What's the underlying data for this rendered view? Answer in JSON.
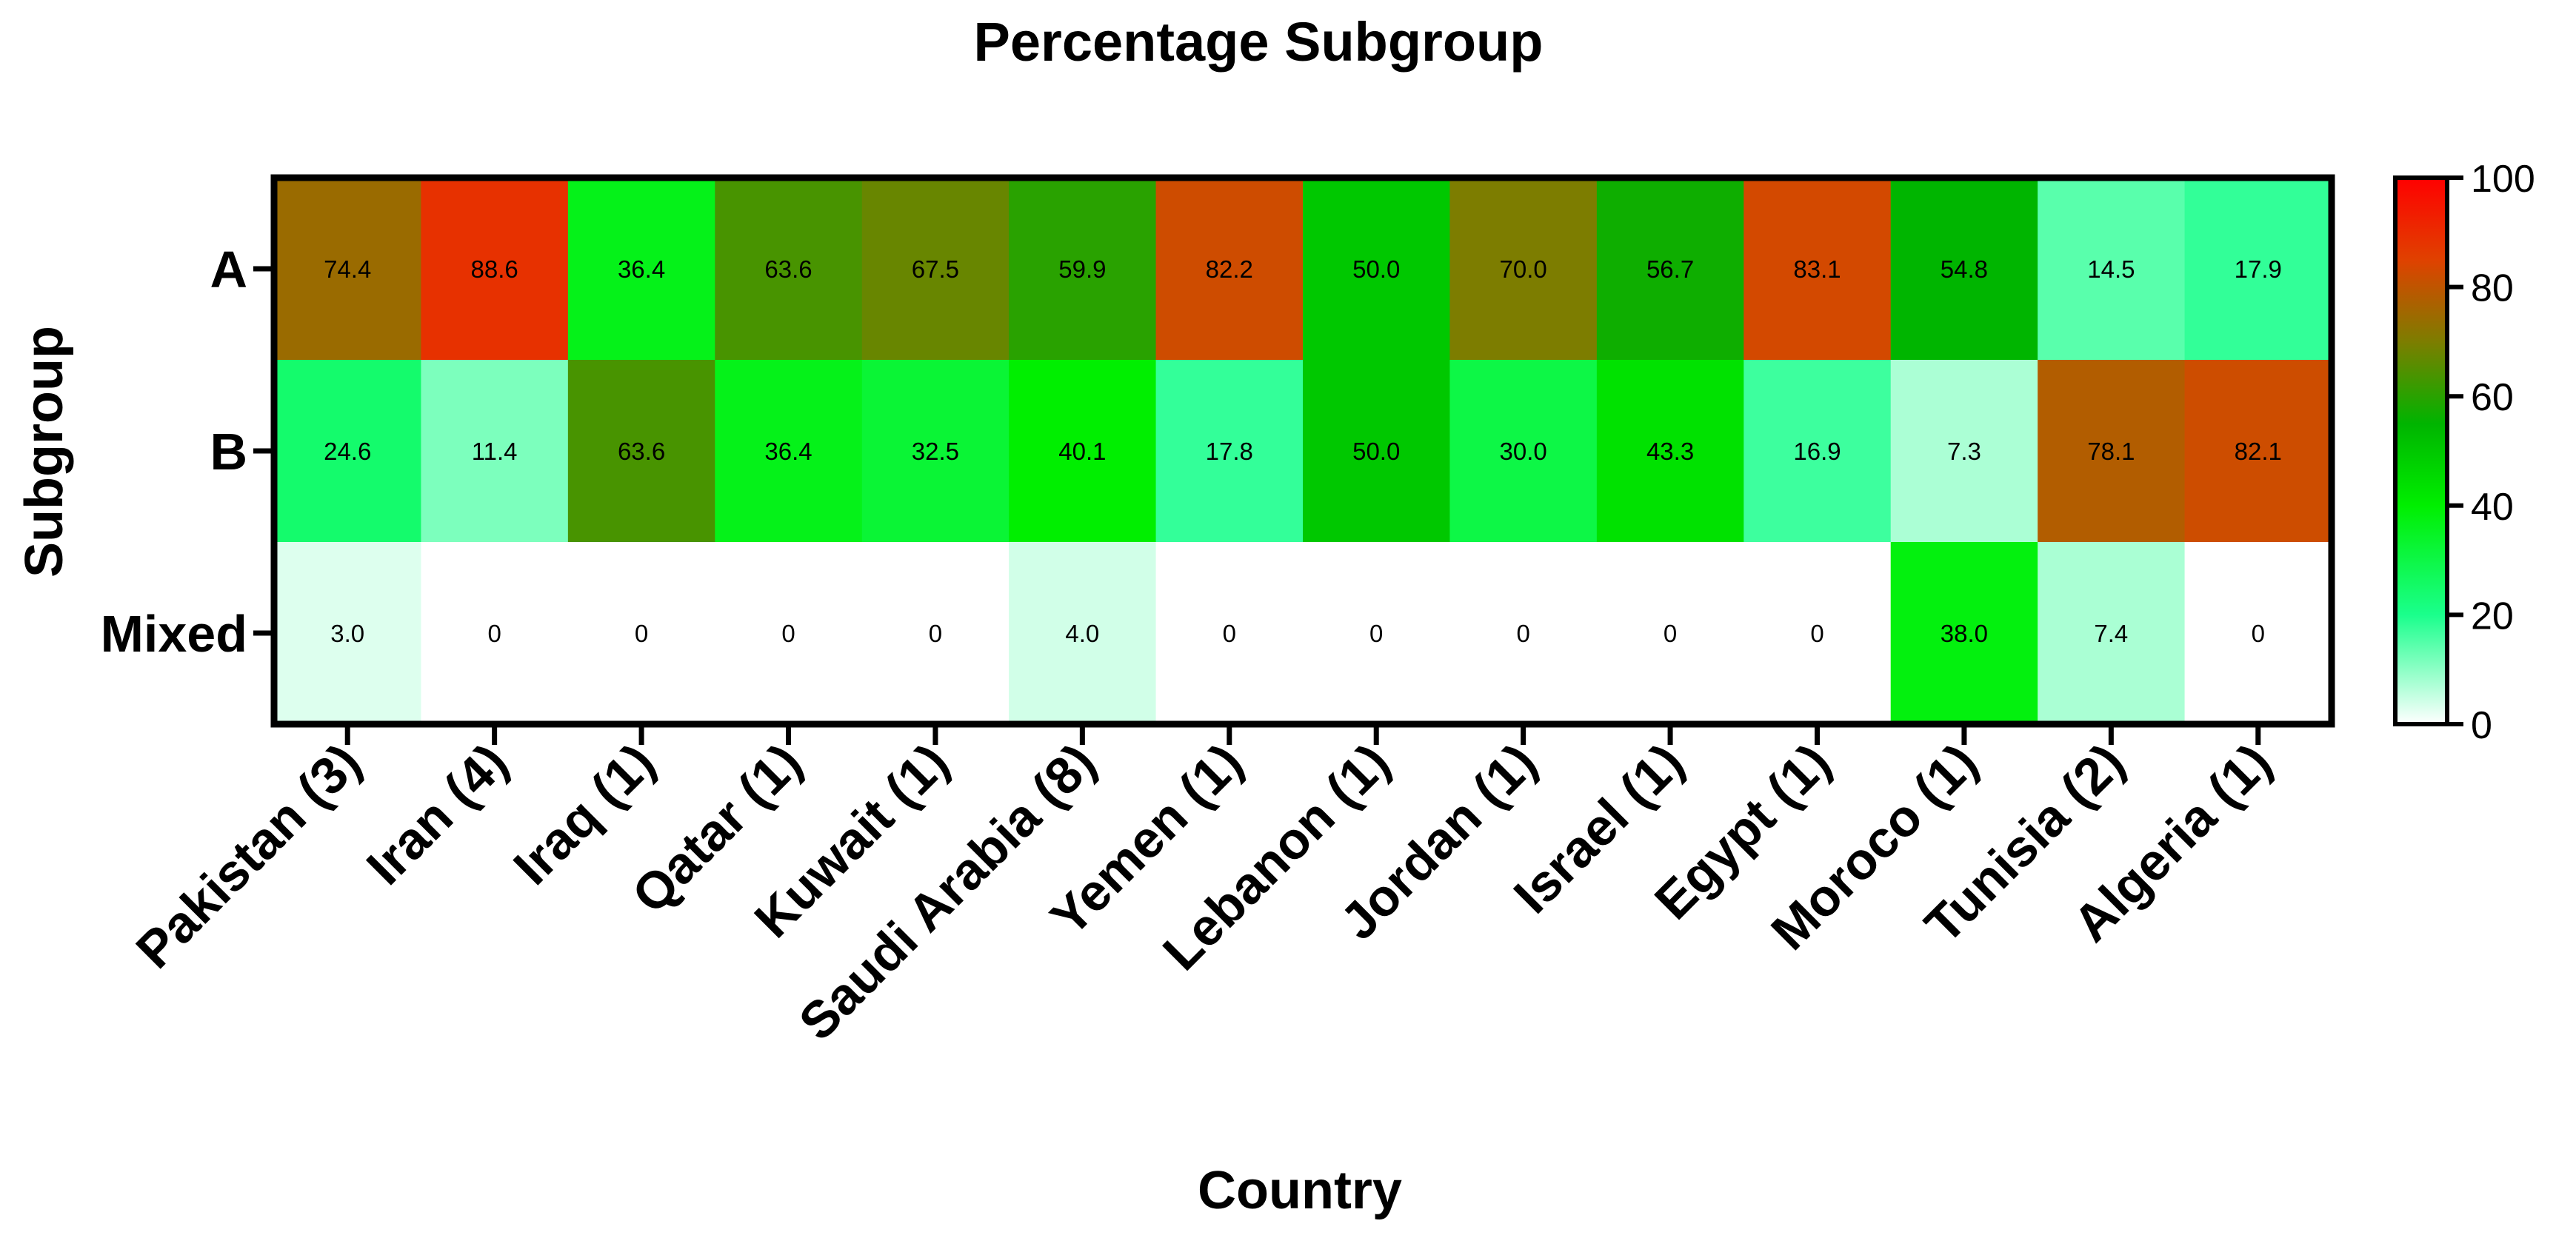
{
  "chart_data": {
    "type": "heatmap",
    "title": "Percentage Subgroup",
    "xlabel": "Country",
    "ylabel": "Subgroup",
    "columns": [
      "Pakistan (3)",
      "Iran (4)",
      "Iraq (1)",
      "Qatar (1)",
      "Kuwait (1)",
      "Saudi Arabia (8)",
      "Yemen (1)",
      "Lebanon (1)",
      "Jordan (1)",
      "Israel (1)",
      "Egypt (1)",
      "Moroco (1)",
      "Tunisia (2)",
      "Algeria (1)"
    ],
    "rows": [
      "A",
      "B",
      "Mixed"
    ],
    "values": [
      [
        74.4,
        88.6,
        36.4,
        63.6,
        67.5,
        59.9,
        82.2,
        50.0,
        70.0,
        56.7,
        83.1,
        54.8,
        14.5,
        17.9
      ],
      [
        24.6,
        11.4,
        63.6,
        36.4,
        32.5,
        40.1,
        17.8,
        50.0,
        30.0,
        43.3,
        16.9,
        7.3,
        78.1,
        82.1
      ],
      [
        3.0,
        0,
        0,
        0,
        0,
        4.0,
        0,
        0,
        0,
        0,
        0,
        38.0,
        7.4,
        0
      ]
    ],
    "labels": [
      [
        "74.4",
        "88.6",
        "36.4",
        "63.6",
        "67.5",
        "59.9",
        "82.2",
        "50.0",
        "70.0",
        "56.7",
        "83.1",
        "54.8",
        "14.5",
        "17.9"
      ],
      [
        "24.6",
        "11.4",
        "63.6",
        "36.4",
        "32.5",
        "40.1",
        "17.8",
        "50.0",
        "30.0",
        "43.3",
        "16.9",
        "7.3",
        "78.1",
        "82.1"
      ],
      [
        "3.0",
        "0",
        "0",
        "0",
        "0",
        "4.0",
        "0",
        "0",
        "0",
        "0",
        "0",
        "38.0",
        "7.4",
        "0"
      ]
    ],
    "colorbar": {
      "min": 0,
      "max": 100,
      "ticks": [
        "0",
        "20",
        "40",
        "60",
        "80",
        "100"
      ],
      "stops": [
        {
          "value": 0,
          "color": "#ffffff"
        },
        {
          "value": 20,
          "color": "#1aff8c"
        },
        {
          "value": 40,
          "color": "#00ef00"
        },
        {
          "value": 55,
          "color": "#00b400"
        },
        {
          "value": 70,
          "color": "#7d7d00"
        },
        {
          "value": 85,
          "color": "#e04100"
        },
        {
          "value": 100,
          "color": "#ff0000"
        }
      ]
    }
  }
}
